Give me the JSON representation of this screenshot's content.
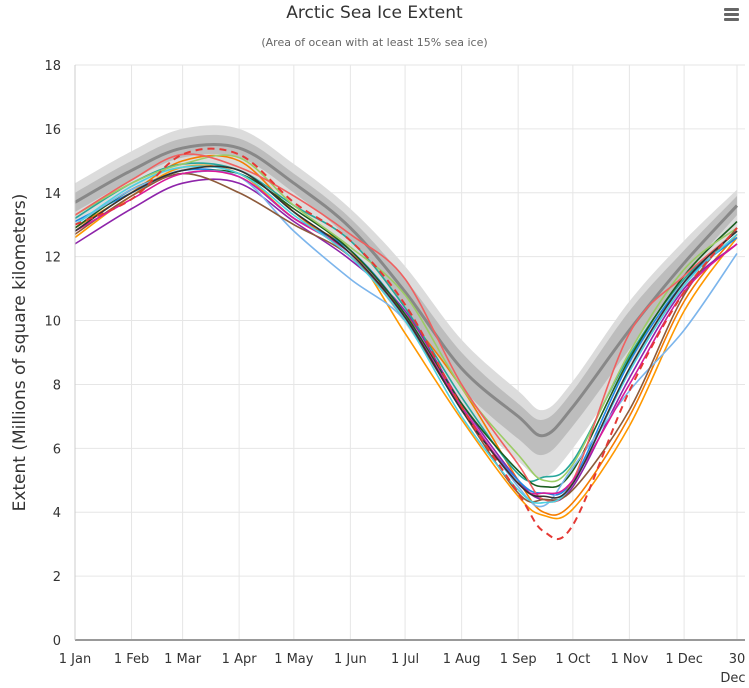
{
  "chart_data": {
    "type": "line",
    "title": "Arctic Sea Ice Extent",
    "subtitle": "(Area of ocean with at least 15% sea ice)",
    "ylabel": "Extent (Millions of square kilometers)",
    "xlabel": "",
    "ylim": [
      0,
      18
    ],
    "yticks": [
      "0",
      "2",
      "4",
      "6",
      "8",
      "10",
      "12",
      "14",
      "16",
      "18"
    ],
    "xlim_day": [
      1,
      364
    ],
    "xticks": [
      {
        "day": 1,
        "label": "1 Jan"
      },
      {
        "day": 32,
        "label": "1 Feb"
      },
      {
        "day": 60,
        "label": "1 Mar"
      },
      {
        "day": 91,
        "label": "1 Apr"
      },
      {
        "day": 121,
        "label": "1 May"
      },
      {
        "day": 152,
        "label": "1 Jun"
      },
      {
        "day": 182,
        "label": "1 Jul"
      },
      {
        "day": 213,
        "label": "1 Aug"
      },
      {
        "day": 244,
        "label": "1 Sep"
      },
      {
        "day": 274,
        "label": "1 Oct"
      },
      {
        "day": 305,
        "label": "1 Nov"
      },
      {
        "day": 335,
        "label": "1 Dec"
      },
      {
        "day": 364,
        "label": "30",
        "label2": "Dec"
      }
    ],
    "grid": true,
    "x_days": [
      1,
      32,
      60,
      91,
      121,
      152,
      182,
      213,
      244,
      258,
      274,
      305,
      335,
      364
    ],
    "median": {
      "color": "#888888",
      "values": [
        13.7,
        14.7,
        15.4,
        15.4,
        14.3,
        12.9,
        10.9,
        8.5,
        7.0,
        6.4,
        7.3,
        9.7,
        11.8,
        13.6
      ]
    },
    "band_outer": {
      "color": "#dcdcdc",
      "lower": [
        13.0,
        14.0,
        14.7,
        14.7,
        13.6,
        12.1,
        9.9,
        7.3,
        5.6,
        5.1,
        6.0,
        8.6,
        11.0,
        12.9
      ],
      "upper": [
        14.3,
        15.3,
        16.0,
        16.0,
        14.9,
        13.5,
        11.7,
        9.4,
        7.8,
        7.2,
        8.1,
        10.6,
        12.5,
        14.1
      ]
    },
    "band_inner": {
      "color": "#bdbdbd",
      "lower": [
        13.4,
        14.4,
        15.1,
        15.1,
        14.0,
        12.5,
        10.4,
        7.9,
        6.3,
        5.8,
        6.7,
        9.1,
        11.4,
        13.3
      ],
      "upper": [
        14.0,
        15.0,
        15.7,
        15.7,
        14.6,
        13.2,
        11.3,
        9.0,
        7.4,
        6.9,
        7.8,
        10.3,
        12.2,
        13.9
      ]
    },
    "series": [
      {
        "color": "#ff9800",
        "values": [
          12.6,
          13.9,
          14.8,
          14.6,
          13.2,
          12.2,
          9.6,
          6.9,
          4.5,
          3.9,
          4.1,
          6.7,
          10.3,
          12.6
        ]
      },
      {
        "color": "#f57c00",
        "values": [
          12.9,
          14.0,
          15.0,
          15.0,
          13.4,
          12.0,
          10.2,
          7.9,
          5.0,
          4.0,
          4.3,
          7.0,
          10.6,
          12.7
        ]
      },
      {
        "color": "#8e24aa",
        "values": [
          12.4,
          13.5,
          14.3,
          14.3,
          13.1,
          11.9,
          10.3,
          7.4,
          5.0,
          4.4,
          4.8,
          8.2,
          11.0,
          12.4
        ]
      },
      {
        "color": "#1e88e5",
        "values": [
          13.1,
          14.0,
          14.7,
          14.5,
          13.2,
          12.2,
          10.2,
          7.2,
          5.0,
          4.6,
          5.0,
          8.7,
          11.2,
          12.6
        ]
      },
      {
        "color": "#26a69a",
        "values": [
          13.2,
          14.3,
          14.9,
          14.7,
          13.6,
          12.5,
          10.4,
          7.6,
          5.2,
          5.1,
          5.6,
          8.9,
          11.3,
          12.8
        ]
      },
      {
        "color": "#1b5e20",
        "values": [
          12.9,
          14.1,
          14.6,
          14.6,
          13.5,
          12.2,
          10.2,
          7.4,
          5.3,
          4.8,
          5.3,
          8.8,
          11.4,
          13.1
        ]
      },
      {
        "color": "#9ccc65",
        "values": [
          13.3,
          14.3,
          14.9,
          15.1,
          13.6,
          12.3,
          10.8,
          7.9,
          5.8,
          5.0,
          5.5,
          9.0,
          11.6,
          12.9
        ]
      },
      {
        "color": "#7cb5ec",
        "values": [
          13.0,
          14.1,
          14.6,
          14.5,
          12.8,
          11.3,
          10.0,
          7.3,
          4.8,
          4.2,
          5.4,
          7.8,
          9.7,
          12.1
        ]
      },
      {
        "color": "#f06060",
        "values": [
          13.3,
          14.4,
          15.2,
          14.8,
          13.9,
          12.7,
          11.3,
          8.0,
          5.5,
          4.4,
          5.0,
          9.6,
          11.4,
          12.8
        ]
      },
      {
        "color": "#8d5a3a",
        "values": [
          12.7,
          13.9,
          14.6,
          14.0,
          13.0,
          12.0,
          10.0,
          7.2,
          4.6,
          4.4,
          4.7,
          7.2,
          10.8,
          12.9
        ]
      },
      {
        "color": "#d81b9a",
        "values": [
          12.8,
          13.8,
          14.6,
          14.5,
          13.2,
          12.1,
          10.1,
          7.3,
          4.9,
          4.6,
          5.0,
          8.0,
          10.9,
          12.4
        ]
      },
      {
        "color": "#4dd0e1",
        "values": [
          13.0,
          14.2,
          14.8,
          14.6,
          13.3,
          12.0,
          10.0,
          7.0,
          4.7,
          4.3,
          4.9,
          8.4,
          11.1,
          12.7
        ]
      },
      {
        "color": "#333333",
        "values": [
          12.8,
          14.0,
          14.7,
          14.7,
          13.4,
          12.1,
          10.1,
          7.2,
          4.9,
          4.5,
          4.9,
          8.5,
          11.2,
          12.8
        ]
      },
      {
        "color": "#e53935",
        "dashed": true,
        "values": [
          13.0,
          13.8,
          15.2,
          15.2,
          13.7,
          12.5,
          10.5,
          7.3,
          4.6,
          3.4,
          3.6,
          7.8,
          10.9,
          12.9
        ]
      }
    ]
  }
}
